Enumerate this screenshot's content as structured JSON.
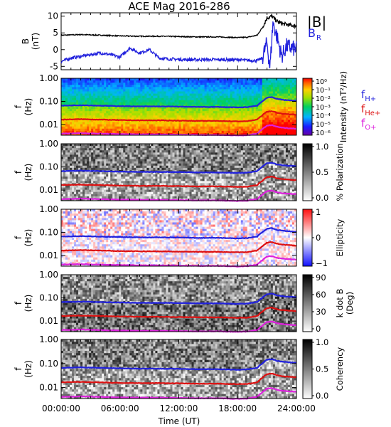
{
  "title": "ACE Mag 2016-286",
  "x_axis": {
    "label": "Time (UT)",
    "tick_labels": [
      "00:00:00",
      "06:00:00",
      "12:00:00",
      "18:00:00",
      "24:00:00"
    ],
    "tick_hours": [
      0,
      6,
      12,
      18,
      24
    ]
  },
  "legend_top": [
    {
      "label": "|B|",
      "color": "#000000"
    },
    {
      "label": "B",
      "sub": "R",
      "color": "#2222dd"
    }
  ],
  "legend_freq": [
    {
      "label": "f",
      "sub": "H+",
      "color": "#2222dd"
    },
    {
      "label": "f",
      "sub": "He+",
      "color": "#dd1111"
    },
    {
      "label": "f",
      "sub": "O+",
      "color": "#dd22dd"
    }
  ],
  "panels": [
    {
      "ylabel_main": "B",
      "ylabel_unit": "(nT)",
      "ticks": [
        "10",
        "5",
        "0",
        "-5"
      ]
    },
    {
      "ylabel_main": "f",
      "ylabel_unit": "(Hz)",
      "ticks": [
        "1.00",
        "0.10",
        "0.01"
      ],
      "colorbar_label": "Intensity (nT²/Hz)",
      "colorbar_ticks": [
        "10⁰",
        "10⁻¹",
        "10⁻²",
        "10⁻³",
        "10⁻⁴",
        "10⁻⁵",
        "10⁻⁶"
      ]
    },
    {
      "ylabel_main": "f",
      "ylabel_unit": "(Hz)",
      "ticks": [
        "1.00",
        "0.10",
        "0.01"
      ],
      "colorbar_label": "% Polarization",
      "colorbar_ticks": [
        "1.0",
        "0.5",
        "0.0"
      ]
    },
    {
      "ylabel_main": "f",
      "ylabel_unit": "(Hz)",
      "ticks": [
        "1.00",
        "0.10",
        "0.01"
      ],
      "colorbar_label": "Ellipticity",
      "colorbar_ticks": [
        "1",
        "0",
        "−1"
      ]
    },
    {
      "ylabel_main": "f",
      "ylabel_unit": "(Hz)",
      "ticks": [
        "1.00",
        "0.10",
        "0.01"
      ],
      "colorbar_label": "k dot B",
      "colorbar_label2": "(Deg)",
      "colorbar_ticks": [
        "90",
        "60",
        "30",
        "0"
      ]
    },
    {
      "ylabel_main": "f",
      "ylabel_unit": "(Hz)",
      "ticks": [
        "1.00",
        "0.10",
        "0.01"
      ],
      "colorbar_label": "Coherency",
      "colorbar_ticks": [
        "1.0",
        "0.5",
        "0.0"
      ]
    }
  ],
  "chart_data": [
    {
      "type": "line",
      "title": "ACE Mag 2016-286",
      "xlabel": "Time (UT)",
      "ylabel": "B (nT)",
      "xlim": [
        0,
        24
      ],
      "ylim": [
        -6,
        11
      ],
      "series": [
        {
          "name": "|B|",
          "color": "#000000",
          "x": [
            0,
            2,
            4,
            6,
            8,
            10,
            12,
            14,
            16,
            18,
            19,
            20,
            20.5,
            21,
            21.5,
            22,
            22.5,
            23,
            24
          ],
          "values": [
            4.3,
            4.5,
            4.3,
            4.1,
            4.0,
            4.0,
            3.9,
            3.8,
            3.8,
            3.6,
            3.7,
            4.3,
            6.5,
            9.5,
            10.0,
            8.5,
            7.8,
            7.5,
            7.0
          ]
        },
        {
          "name": "B_R",
          "color": "#2222dd",
          "x": [
            0,
            1,
            2,
            3,
            4,
            5,
            6,
            7,
            8,
            9,
            10,
            11,
            12,
            13,
            14,
            15,
            16,
            17,
            18,
            19,
            20,
            20.5,
            21,
            21.3,
            21.6,
            22,
            22.5,
            23,
            24
          ],
          "values": [
            -3.5,
            -2.5,
            -2.0,
            -1.5,
            -1.0,
            -1.5,
            -2.2,
            0.5,
            -1.0,
            0.0,
            -2.5,
            -2.8,
            -2.9,
            -3.0,
            -3.0,
            -3.0,
            -3.0,
            -3.0,
            -3.0,
            -3.2,
            -3.3,
            -2.5,
            2.0,
            -5.5,
            8.0,
            4.0,
            -2.0,
            1.0,
            0.0
          ]
        }
      ]
    },
    {
      "type": "heatmap",
      "ylabel": "f (Hz)",
      "xlim": [
        0,
        24
      ],
      "ylim": [
        0.0035,
        1.0
      ],
      "y_scale": "log",
      "series": [
        {
          "name": "fH+",
          "color": "#2222dd",
          "x": [
            0,
            2,
            4,
            6,
            8,
            10,
            12,
            14,
            16,
            18,
            19,
            20,
            20.5,
            21,
            21.5,
            22,
            22.5,
            23,
            24
          ],
          "values": [
            0.066,
            0.069,
            0.066,
            0.063,
            0.061,
            0.061,
            0.06,
            0.058,
            0.058,
            0.055,
            0.057,
            0.066,
            0.099,
            0.145,
            0.153,
            0.13,
            0.119,
            0.114,
            0.107
          ]
        },
        {
          "name": "fHe+",
          "color": "#dd1111",
          "x": [
            0,
            2,
            4,
            6,
            8,
            10,
            12,
            14,
            16,
            18,
            19,
            20,
            20.5,
            21,
            21.5,
            22,
            22.5,
            23,
            24
          ],
          "values": [
            0.0165,
            0.0172,
            0.0165,
            0.0157,
            0.0153,
            0.0153,
            0.0149,
            0.0145,
            0.0145,
            0.0138,
            0.0141,
            0.0165,
            0.0248,
            0.0363,
            0.0382,
            0.0325,
            0.0298,
            0.0286,
            0.0267
          ]
        },
        {
          "name": "fO+",
          "color": "#dd22dd",
          "x": [
            0,
            2,
            4,
            6,
            8,
            10,
            12,
            14,
            16,
            18,
            19,
            20,
            20.5,
            21,
            21.5,
            22,
            22.5,
            23,
            24
          ],
          "values": [
            0.0041,
            0.0043,
            0.0041,
            0.0039,
            0.0038,
            0.0038,
            0.0037,
            0.0036,
            0.0036,
            0.0034,
            0.0035,
            0.0041,
            0.0062,
            0.0091,
            0.0095,
            0.0081,
            0.0074,
            0.0071,
            0.0067
          ]
        }
      ]
    }
  ]
}
